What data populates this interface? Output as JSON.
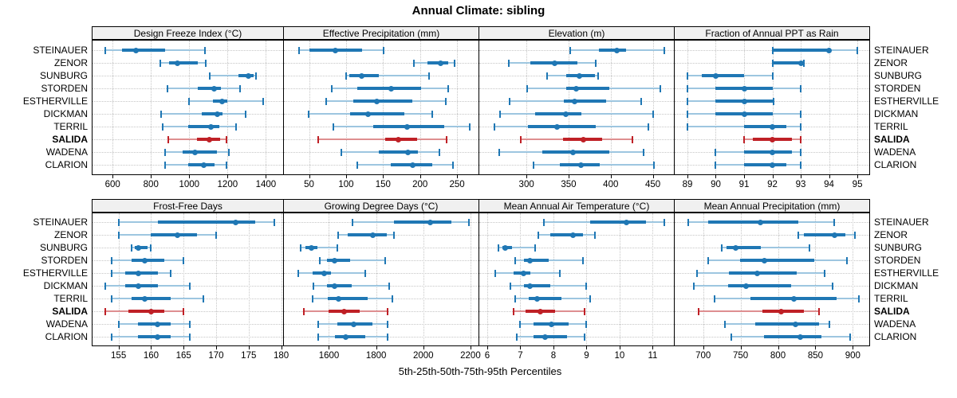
{
  "title": "Annual Climate: sibling",
  "xlabel": "5th-25th-50th-75th-95th Percentiles",
  "locations": [
    "STEINAUER",
    "ZENOR",
    "SUNBURG",
    "STORDEN",
    "ESTHERVILLE",
    "DICKMAN",
    "TERRIL",
    "SALIDA",
    "WADENA",
    "CLARION"
  ],
  "highlight_location": "SALIDA",
  "colors": {
    "blue": "#1f77b4",
    "blue_light": "#9dc6e0",
    "red": "#bf2026",
    "red_light": "#de8f90",
    "strip_bg": "#f0f0f0",
    "grid": "#c6c6c6"
  },
  "chart_data": {
    "type": "dot-interval",
    "percentiles": [
      5,
      25,
      50,
      75,
      95
    ],
    "legend_note": "thin line = 5th-95th, thick bar = 25th-75th, dot = 50th percentile",
    "grid": "dotted",
    "panels": [
      {
        "title": "Design Freeze Index (°C)",
        "row": 0,
        "col": 0,
        "xlim": [
          495,
          1490
        ],
        "ticks": [
          600,
          800,
          1000,
          1200,
          1400
        ],
        "series": [
          [
            560,
            650,
            720,
            875,
            1080
          ],
          [
            850,
            895,
            940,
            1045,
            1085
          ],
          [
            1105,
            1255,
            1310,
            1335,
            1350
          ],
          [
            885,
            1045,
            1130,
            1165,
            1265
          ],
          [
            1000,
            1125,
            1170,
            1200,
            1385
          ],
          [
            855,
            1065,
            1145,
            1175,
            1295
          ],
          [
            860,
            995,
            1115,
            1155,
            1245
          ],
          [
            890,
            1040,
            1105,
            1160,
            1195
          ],
          [
            875,
            965,
            1030,
            1145,
            1205
          ],
          [
            875,
            995,
            1075,
            1130,
            1195
          ]
        ]
      },
      {
        "title": "Effective Precipitation (mm)",
        "row": 0,
        "col": 1,
        "xlim": [
          16,
          279
        ],
        "ticks": [
          50,
          100,
          150,
          200,
          250
        ],
        "series": [
          [
            37,
            50,
            85,
            122,
            151
          ],
          [
            192,
            210,
            228,
            238,
            247
          ],
          [
            100,
            104,
            121,
            144,
            212
          ],
          [
            81,
            115,
            161,
            201,
            238
          ],
          [
            73,
            110,
            142,
            190,
            235
          ],
          [
            49,
            105,
            130,
            179,
            217
          ],
          [
            83,
            137,
            183,
            233,
            267
          ],
          [
            62,
            153,
            171,
            196,
            236
          ],
          [
            94,
            144,
            184,
            197,
            226
          ],
          [
            115,
            160,
            190,
            217,
            245
          ]
        ]
      },
      {
        "title": "Elevation (m)",
        "row": 0,
        "col": 2,
        "xlim": [
          244,
          475
        ],
        "ticks": [
          300,
          350,
          400,
          450
        ],
        "series": [
          [
            352,
            386,
            407,
            418,
            464
          ],
          [
            279,
            305,
            333,
            360,
            382
          ],
          [
            324,
            347,
            363,
            381,
            385
          ],
          [
            301,
            347,
            359,
            398,
            459
          ],
          [
            280,
            344,
            357,
            395,
            436
          ],
          [
            269,
            310,
            347,
            365,
            450
          ],
          [
            262,
            302,
            336,
            382,
            445
          ],
          [
            293,
            343,
            368,
            390,
            426
          ],
          [
            268,
            319,
            355,
            398,
            439
          ],
          [
            308,
            340,
            365,
            387,
            451
          ]
        ]
      },
      {
        "title": "Fraction of Annual PPT as Rain",
        "row": 0,
        "col": 3,
        "xlim": [
          88.55,
          95.42
        ],
        "ticks": [
          89,
          90,
          91,
          92,
          93,
          94,
          95
        ],
        "series": [
          [
            92,
            92.05,
            94,
            94.05,
            95
          ],
          [
            92,
            92.05,
            93,
            93.05,
            93.1
          ],
          [
            89,
            89.5,
            90,
            91,
            92
          ],
          [
            89,
            90,
            91,
            92,
            93
          ],
          [
            89,
            90,
            91,
            92,
            92.05
          ],
          [
            89,
            90,
            91,
            92,
            93
          ],
          [
            89,
            91,
            92,
            92.5,
            93
          ],
          [
            91,
            91.3,
            92,
            92.7,
            93
          ],
          [
            90,
            91,
            92,
            92.7,
            93
          ],
          [
            90,
            91,
            92,
            92.5,
            93
          ]
        ]
      },
      {
        "title": "Frost-Free Days",
        "row": 1,
        "col": 0,
        "xlim": [
          151,
          180.3
        ],
        "ticks": [
          155,
          160,
          165,
          170,
          175,
          180
        ],
        "series": [
          [
            155,
            161,
            173,
            176,
            179
          ],
          [
            155,
            160,
            164,
            167,
            170
          ],
          [
            157,
            157.5,
            158,
            159.5,
            160
          ],
          [
            154,
            157,
            159,
            162,
            165
          ],
          [
            154,
            156,
            158,
            161,
            163
          ],
          [
            153,
            156,
            158,
            161,
            166
          ],
          [
            154,
            157,
            159,
            163,
            168
          ],
          [
            153,
            156.5,
            160,
            162,
            165
          ],
          [
            155,
            158,
            161,
            163,
            166
          ],
          [
            154,
            158,
            161,
            163,
            166
          ]
        ]
      },
      {
        "title": "Growing Degree Days (°C)",
        "row": 1,
        "col": 1,
        "xlim": [
          1409,
          2234
        ],
        "ticks": [
          1600,
          1800,
          2000,
          2200
        ],
        "series": [
          [
            1700,
            1875,
            2030,
            2120,
            2195
          ],
          [
            1640,
            1680,
            1785,
            1845,
            1875
          ],
          [
            1480,
            1500,
            1525,
            1550,
            1635
          ],
          [
            1560,
            1590,
            1625,
            1690,
            1840
          ],
          [
            1470,
            1530,
            1580,
            1610,
            1755
          ],
          [
            1535,
            1590,
            1625,
            1695,
            1855
          ],
          [
            1530,
            1595,
            1640,
            1765,
            1870
          ],
          [
            1495,
            1600,
            1665,
            1730,
            1850
          ],
          [
            1555,
            1635,
            1705,
            1785,
            1850
          ],
          [
            1555,
            1625,
            1670,
            1755,
            1850
          ]
        ]
      },
      {
        "title": "Mean Annual Air Temperature (°C)",
        "row": 1,
        "col": 2,
        "xlim": [
          5.76,
          11.64
        ],
        "ticks": [
          6,
          7,
          8,
          9,
          10,
          11
        ],
        "series": [
          [
            7.7,
            9.1,
            10.2,
            10.8,
            11.35
          ],
          [
            7.55,
            7.9,
            8.6,
            8.9,
            9.25
          ],
          [
            6.35,
            6.45,
            6.55,
            6.75,
            7.45
          ],
          [
            6.85,
            7.1,
            7.3,
            7.85,
            8.9
          ],
          [
            6.25,
            6.8,
            7.1,
            7.3,
            8.2
          ],
          [
            6.7,
            7.1,
            7.3,
            7.9,
            9.0
          ],
          [
            6.85,
            7.25,
            7.5,
            8.25,
            9.1
          ],
          [
            6.8,
            7.15,
            7.6,
            8.05,
            8.95
          ],
          [
            7.0,
            7.4,
            7.95,
            8.45,
            9.0
          ],
          [
            6.9,
            7.4,
            7.75,
            8.4,
            8.95
          ]
        ]
      },
      {
        "title": "Mean Annual Precipitation (mm)",
        "row": 1,
        "col": 3,
        "xlim": [
          662,
          922
        ],
        "ticks": [
          700,
          750,
          800,
          850,
          900
        ],
        "series": [
          [
            680,
            707,
            777,
            827,
            875
          ],
          [
            827,
            835,
            876,
            890,
            903
          ],
          [
            725,
            731,
            744,
            777,
            842
          ],
          [
            707,
            749,
            782,
            848,
            892
          ],
          [
            692,
            734,
            772,
            825,
            862
          ],
          [
            688,
            733,
            757,
            818,
            873
          ],
          [
            715,
            763,
            821,
            878,
            908
          ],
          [
            694,
            779,
            804,
            835,
            855
          ],
          [
            729,
            770,
            823,
            855,
            869
          ],
          [
            738,
            781,
            830,
            858,
            896
          ]
        ]
      }
    ]
  }
}
